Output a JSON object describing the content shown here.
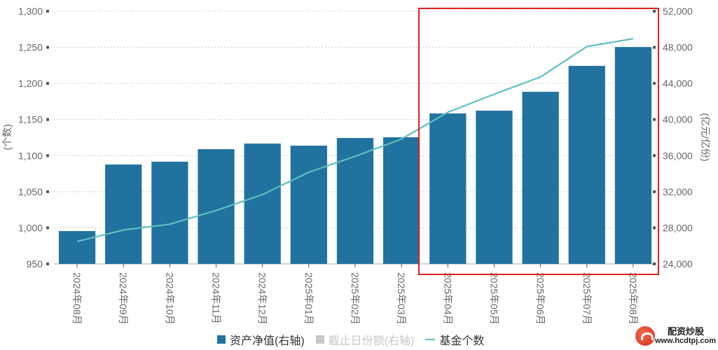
{
  "chart_data": {
    "type": "bar+line",
    "title": "",
    "categories": [
      "2024年08月",
      "2024年09月",
      "2024年10月",
      "2024年11月",
      "2024年12月",
      "2025年01月",
      "2025年02月",
      "2025年03月",
      "2025年04月",
      "2025年05月",
      "2025年06月",
      "2025年07月",
      "2025年08月"
    ],
    "series": [
      {
        "name": "资产净值(右轴)",
        "type": "bar",
        "axis": "right",
        "color": "#21729e",
        "visible": true,
        "values": [
          27640,
          35010,
          35320,
          36710,
          37330,
          37100,
          37950,
          38030,
          40670,
          40980,
          43070,
          45940,
          48030
        ]
      },
      {
        "name": "截止日份额(右轴)",
        "type": "bar",
        "axis": "right",
        "color": "#c8c8c8",
        "visible": false,
        "values": []
      },
      {
        "name": "基金个数",
        "type": "line",
        "axis": "left",
        "color": "#5dbfbf",
        "visible": true,
        "values": [
          981,
          997,
          1005,
          1024,
          1046,
          1077,
          1099,
          1123,
          1160,
          1185,
          1209,
          1251,
          1262
        ]
      }
    ],
    "left_axis": {
      "label": "(个数)",
      "ylim": [
        950,
        1300
      ],
      "ticks": [
        "950",
        "1,000",
        "1,050",
        "1,100",
        "1,150",
        "1,200",
        "1,250",
        "1,300"
      ]
    },
    "right_axis": {
      "label": "(亿元/亿份)",
      "ylim": [
        24000,
        52000
      ],
      "ticks": [
        "24,000",
        "28,000",
        "32,000",
        "36,000",
        "40,000",
        "44,000",
        "48,000",
        "52,000"
      ]
    },
    "grid": "dotted horizontal",
    "legend_position": "bottom",
    "annotation": {
      "type": "red-rectangle",
      "covers": [
        "2025年04月",
        "2025年05月",
        "2025年06月",
        "2025年07月",
        "2025年08月"
      ],
      "color": "#e02020"
    }
  },
  "legend": [
    {
      "label": "资产净值(右轴)",
      "state": "on"
    },
    {
      "label": "截止日份额(右轴)",
      "state": "off"
    },
    {
      "label": "基金个数",
      "state": "on"
    }
  ],
  "watermark": {
    "title": "配资炒股",
    "url": "www.hcdtpj.com"
  }
}
